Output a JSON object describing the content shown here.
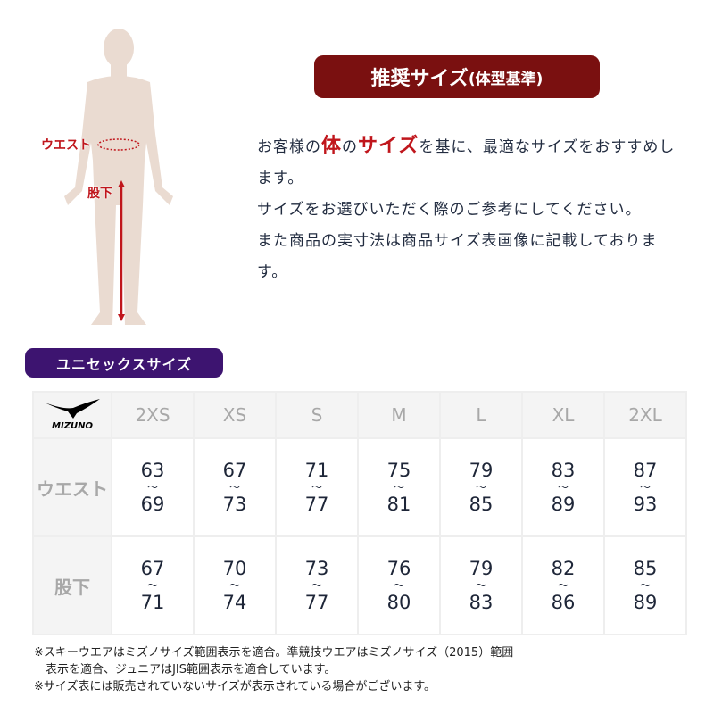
{
  "figure": {
    "waist_label": "ウエスト",
    "inseam_label": "股下"
  },
  "title": {
    "main": "推奨サイズ",
    "sub": "(体型基準)"
  },
  "intro": {
    "p1a": "お客様の",
    "hl1": "体",
    "p1b": "の",
    "hl2": "サイズ",
    "p1c": "を基に、最適なサイズをおすすめします。",
    "p2": "サイズをお選びいただく際のご参考にしてください。",
    "p3": "また商品の実寸法は商品サイズ表画像に記載しております。"
  },
  "section_label": "ユニセックスサイズ",
  "table": {
    "logo": "MIZUNO",
    "sizes": [
      "2XS",
      "XS",
      "S",
      "M",
      "L",
      "XL",
      "2XL"
    ],
    "rows": [
      {
        "label": "ウエスト",
        "values": [
          [
            "63",
            "69"
          ],
          [
            "67",
            "73"
          ],
          [
            "71",
            "77"
          ],
          [
            "75",
            "81"
          ],
          [
            "79",
            "85"
          ],
          [
            "83",
            "89"
          ],
          [
            "87",
            "93"
          ]
        ]
      },
      {
        "label": "股下",
        "values": [
          [
            "67",
            "71"
          ],
          [
            "70",
            "74"
          ],
          [
            "73",
            "77"
          ],
          [
            "76",
            "80"
          ],
          [
            "79",
            "83"
          ],
          [
            "82",
            "86"
          ],
          [
            "85",
            "89"
          ]
        ]
      }
    ],
    "range_mark": "～"
  },
  "notes": [
    "※スキーウエアはミズノサイズ範囲表示を適合。準競技ウエアはミズノサイズ（2015）範囲",
    "　表示を適合、ジュニアはJIS範囲表示を適合しています。",
    "※サイズ表には販売されていないサイズが表示されている場合がございます。"
  ],
  "colors": {
    "title_bg": "#7a1010",
    "pill_bg": "#3d1470",
    "accent": "#c0161c",
    "body": "#eadbd1"
  }
}
